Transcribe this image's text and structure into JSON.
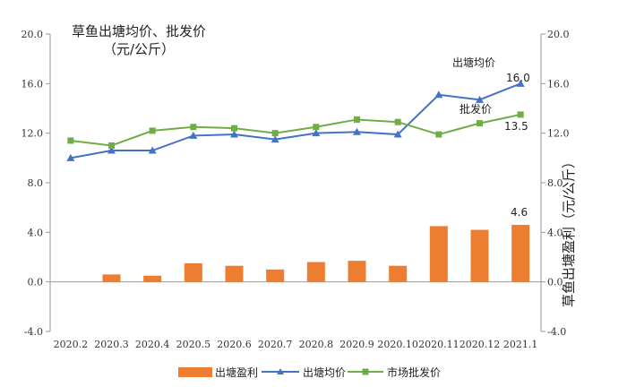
{
  "chart_data": {
    "type": "bar+line",
    "title_line1": "草鱼出塘均价、批发价",
    "title_line2": "（元/公斤）",
    "y2_label": "草鱼出塘盈利（元/公斤）",
    "categories": [
      "2020.2",
      "2020.3",
      "2020.4",
      "2020.5",
      "2020.6",
      "2020.7",
      "2020.8",
      "2020.9",
      "2020.10",
      "2020.11",
      "2020.12",
      "2021.1"
    ],
    "ylim": [
      -4.0,
      20.0
    ],
    "yticks": [
      "-4.0",
      "0.0",
      "4.0",
      "8.0",
      "12.0",
      "16.0",
      "20.0"
    ],
    "y2ticks": [
      "-4.0",
      "0.0",
      "4.0",
      "8.0",
      "12.0",
      "16.0",
      "20.0"
    ],
    "series": [
      {
        "name": "出塘盈利",
        "kind": "bar",
        "color": "#ED7D31",
        "values": [
          null,
          0.6,
          0.5,
          1.5,
          1.3,
          1.0,
          1.6,
          1.7,
          1.3,
          4.5,
          4.2,
          4.6
        ]
      },
      {
        "name": "出塘均价",
        "kind": "line",
        "marker": "triangle",
        "color": "#4472C4",
        "values": [
          10.0,
          10.6,
          10.6,
          11.8,
          11.9,
          11.5,
          12.0,
          12.1,
          11.9,
          15.1,
          14.7,
          16.0
        ]
      },
      {
        "name": "市场批发价",
        "kind": "line",
        "marker": "square",
        "color": "#70AD47",
        "values": [
          11.4,
          11.0,
          12.2,
          12.5,
          12.4,
          12.0,
          12.5,
          13.1,
          12.9,
          11.9,
          12.8,
          13.5
        ]
      }
    ],
    "annotations": {
      "avg_price_label": "出塘均价",
      "wholesale_label": "批发价",
      "last_avg_value": "16.0",
      "last_wholesale_value": "13.5",
      "last_profit_value": "4.6"
    },
    "legend": [
      "出塘盈利",
      "出塘均价",
      "市场批发价"
    ]
  }
}
